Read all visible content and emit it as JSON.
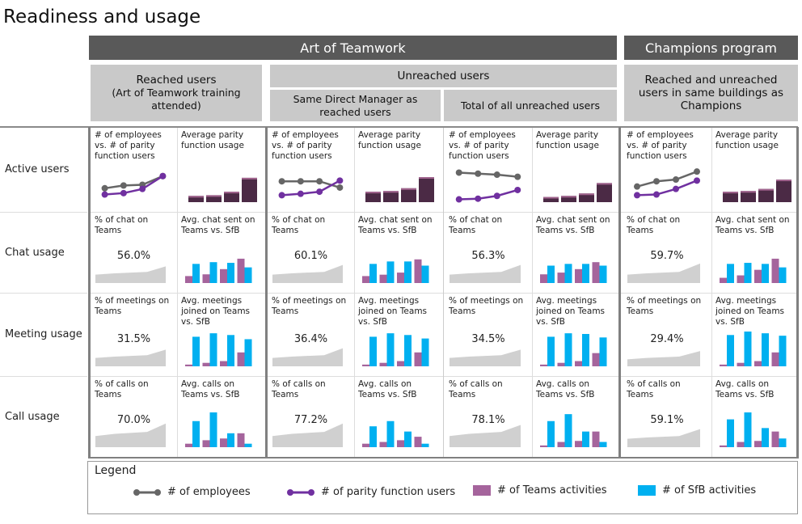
{
  "title": "Readiness and usage",
  "headers": {
    "art": "Art of Teamwork",
    "champions": "Champions program",
    "reached": "Reached users",
    "reached_sub": "(Art of Teamwork training attended)",
    "unreached": "Unreached users",
    "same_mgr": "Same Direct Manager as reached users",
    "total_unreached": "Total of all unreached users",
    "champ_sub": "Reached and unreached users in same buildings as Champions"
  },
  "rows": [
    {
      "label": "Active users",
      "left_title": "# of employees vs. # of parity function users",
      "right_title": "Average parity function usage"
    },
    {
      "label": "Chat usage",
      "left_title": "% of chat on Teams",
      "right_title": "Avg. chat sent on Teams vs. SfB"
    },
    {
      "label": "Meeting usage",
      "left_title": "% of meetings on Teams",
      "right_title": "Avg. meetings joined on Teams vs. SfB"
    },
    {
      "label": "Call usage",
      "left_title": "% of calls on Teams",
      "right_title": "Avg. calls on Teams vs. SfB"
    }
  ],
  "colors": {
    "employees": "#666666",
    "parity": "#7030a0",
    "parity_bar": "#4b2a45",
    "teams": "#a5649c",
    "sfb": "#00b0f0",
    "area": "#d0d0d0",
    "header": "#595959",
    "subheader": "#c9c9c9"
  },
  "groups": [
    {
      "active": {
        "employees": [
          40,
          48,
          50,
          75
        ],
        "parity": [
          22,
          26,
          38,
          75
        ],
        "usage": [
          18,
          20,
          30,
          70
        ]
      },
      "chat": {
        "pct": "56.0%",
        "trend": [
          30,
          35,
          40,
          60
        ],
        "teams": [
          20,
          25,
          40,
          70
        ],
        "sfb": [
          55,
          60,
          58,
          45
        ]
      },
      "meeting": {
        "pct": "31.5%",
        "trend": [
          30,
          35,
          40,
          60
        ],
        "teams": [
          5,
          10,
          15,
          40
        ],
        "sfb": [
          85,
          95,
          90,
          78
        ]
      },
      "call": {
        "pct": "70.0%",
        "trend": [
          40,
          48,
          55,
          85
        ],
        "teams": [
          10,
          20,
          25,
          40
        ],
        "sfb": [
          75,
          100,
          40,
          10
        ]
      }
    },
    {
      "active": {
        "employees": [
          60,
          60,
          60,
          42
        ],
        "parity": [
          20,
          24,
          30,
          62
        ],
        "usage": [
          30,
          32,
          40,
          72
        ]
      },
      "chat": {
        "pct": "60.1%",
        "trend": [
          30,
          35,
          40,
          65
        ],
        "teams": [
          20,
          24,
          30,
          68
        ],
        "sfb": [
          55,
          62,
          62,
          50
        ]
      },
      "meeting": {
        "pct": "36.4%",
        "trend": [
          30,
          35,
          40,
          65
        ],
        "teams": [
          5,
          10,
          15,
          40
        ],
        "sfb": [
          85,
          95,
          90,
          80
        ]
      },
      "call": {
        "pct": "77.2%",
        "trend": [
          40,
          48,
          55,
          85
        ],
        "teams": [
          10,
          15,
          20,
          30
        ],
        "sfb": [
          60,
          75,
          45,
          10
        ]
      }
    },
    {
      "active": {
        "employees": [
          85,
          82,
          79,
          73
        ],
        "parity": [
          8,
          10,
          18,
          35
        ],
        "usage": [
          15,
          18,
          25,
          55
        ]
      },
      "chat": {
        "pct": "56.3%",
        "trend": [
          30,
          35,
          40,
          65
        ],
        "teams": [
          25,
          30,
          40,
          60
        ],
        "sfb": [
          50,
          55,
          55,
          50
        ]
      },
      "meeting": {
        "pct": "34.5%",
        "trend": [
          30,
          35,
          40,
          60
        ],
        "teams": [
          5,
          10,
          15,
          38
        ],
        "sfb": [
          85,
          95,
          93,
          83
        ]
      },
      "call": {
        "pct": "78.1%",
        "trend": [
          40,
          48,
          55,
          80
        ],
        "teams": [
          5,
          15,
          18,
          45
        ],
        "sfb": [
          75,
          95,
          45,
          15
        ]
      }
    },
    {
      "active": {
        "employees": [
          45,
          60,
          65,
          88
        ],
        "parity": [
          20,
          22,
          38,
          62
        ],
        "usage": [
          30,
          32,
          38,
          65
        ]
      },
      "chat": {
        "pct": "59.7%",
        "trend": [
          30,
          35,
          40,
          70
        ],
        "teams": [
          15,
          22,
          38,
          70
        ],
        "sfb": [
          55,
          58,
          55,
          45
        ]
      },
      "meeting": {
        "pct": "29.4%",
        "trend": [
          25,
          30,
          35,
          55
        ],
        "teams": [
          5,
          10,
          15,
          40
        ],
        "sfb": [
          90,
          100,
          95,
          88
        ]
      },
      "call": {
        "pct": "59.1%",
        "trend": [
          30,
          35,
          40,
          65
        ],
        "teams": [
          5,
          15,
          18,
          45
        ],
        "sfb": [
          80,
          100,
          55,
          25
        ]
      }
    }
  ],
  "legend": {
    "title": "Legend",
    "items": [
      "# of employees",
      "# of parity function users",
      "# of Teams activities",
      "# of SfB activities"
    ]
  }
}
